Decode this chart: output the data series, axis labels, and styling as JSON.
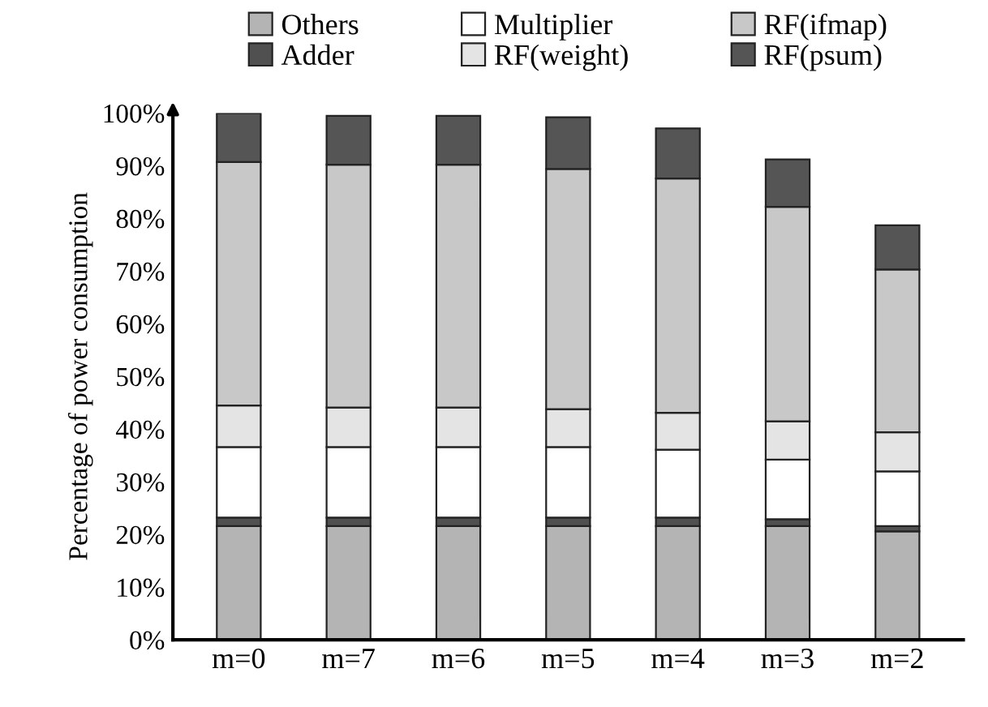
{
  "chart_data": {
    "type": "bar",
    "stacked": true,
    "ylabel": "Percentage of power consumption",
    "categories": [
      "m=0",
      "m=7",
      "m=6",
      "m=5",
      "m=4",
      "m=3",
      "m=2"
    ],
    "series": [
      {
        "name": "Others",
        "color": "#b4b4b4",
        "values": [
          21.6,
          21.6,
          21.6,
          21.6,
          21.6,
          21.6,
          20.6
        ]
      },
      {
        "name": "Adder",
        "color": "#505050",
        "values": [
          1.6,
          1.6,
          1.6,
          1.6,
          1.6,
          1.3,
          1.0
        ]
      },
      {
        "name": "Multiplier",
        "color": "#ffffff",
        "values": [
          13.4,
          13.4,
          13.4,
          13.4,
          12.9,
          11.3,
          10.4
        ]
      },
      {
        "name": "RF(weight)",
        "color": "#e4e4e4",
        "values": [
          7.9,
          7.5,
          7.5,
          7.2,
          7.0,
          7.3,
          7.4
        ]
      },
      {
        "name": "RF(ifmap)",
        "color": "#c8c8c8",
        "values": [
          46.2,
          46.1,
          46.1,
          45.6,
          44.5,
          40.7,
          30.9
        ]
      },
      {
        "name": "RF(psum)",
        "color": "#555555",
        "values": [
          9.3,
          9.3,
          9.3,
          9.8,
          9.5,
          9.0,
          8.4
        ]
      }
    ],
    "ylim": [
      0,
      100
    ],
    "yticks": [
      {
        "value": 0,
        "label": "0%"
      },
      {
        "value": 10,
        "label": "10%"
      },
      {
        "value": 20,
        "label": "20%"
      },
      {
        "value": 30,
        "label": "30%"
      },
      {
        "value": 40,
        "label": "40%"
      },
      {
        "value": 50,
        "label": "50%"
      },
      {
        "value": 60,
        "label": "60%"
      },
      {
        "value": 70,
        "label": "70%"
      },
      {
        "value": 80,
        "label": "80%"
      },
      {
        "value": 90,
        "label": "90%"
      },
      {
        "value": 100,
        "label": "100%"
      }
    ],
    "grid": false,
    "legend": "top"
  }
}
